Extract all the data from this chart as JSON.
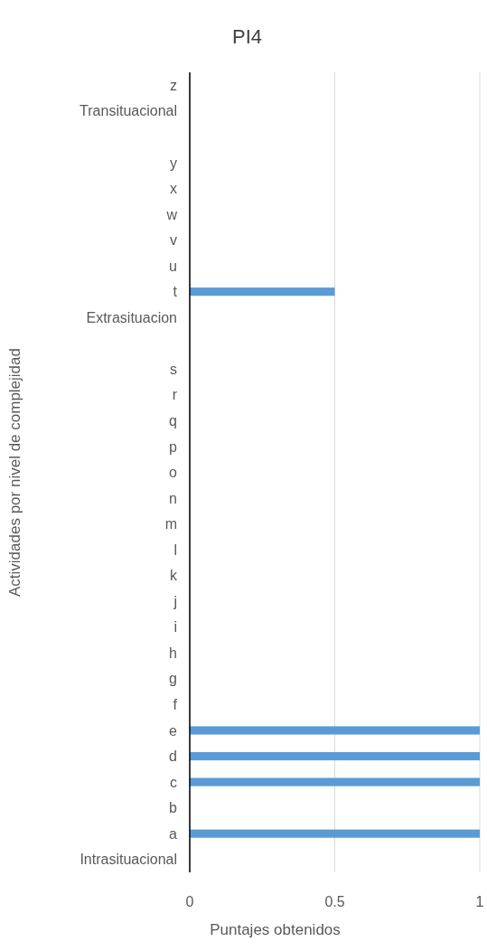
{
  "chart_data": {
    "type": "bar",
    "orientation": "horizontal",
    "title": "PI4",
    "xlabel": "Puntajes obtenidos",
    "ylabel": "Actividades por nivel de complejidad",
    "categories": [
      "z",
      "Transituacional",
      null,
      "y",
      "x",
      "w",
      "v",
      "u",
      "t",
      "Extrasituacion",
      null,
      "s",
      "r",
      "q",
      "p",
      "o",
      "n",
      "m",
      "l",
      "k",
      "j",
      "i",
      "h",
      "g",
      "f",
      "e",
      "d",
      "c",
      "b",
      "a",
      "Intrasituacional"
    ],
    "values": [
      null,
      null,
      null,
      null,
      null,
      null,
      null,
      null,
      0.5,
      null,
      null,
      null,
      null,
      null,
      null,
      null,
      null,
      null,
      null,
      null,
      null,
      null,
      null,
      null,
      null,
      1,
      1,
      1,
      null,
      1,
      null
    ],
    "color": "#5b9bd5",
    "xlim": [
      0,
      1
    ],
    "xticks": [
      0,
      0.5,
      1
    ],
    "grid": "x"
  }
}
